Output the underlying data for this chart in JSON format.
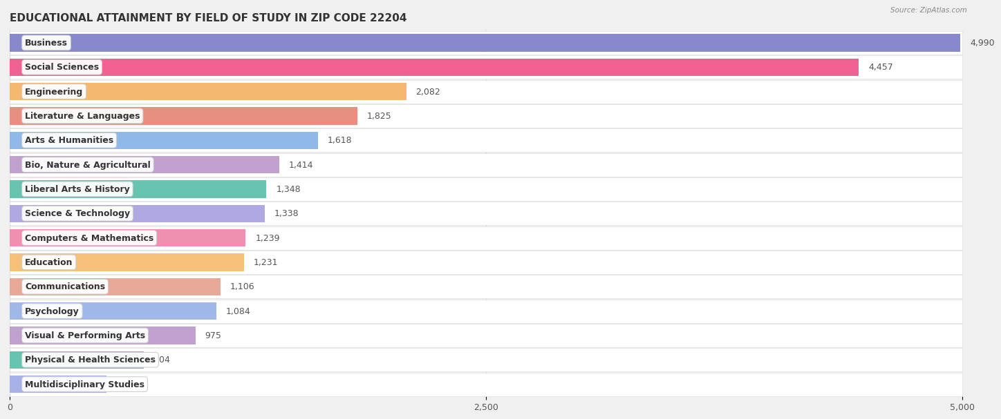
{
  "title": "EDUCATIONAL ATTAINMENT BY FIELD OF STUDY IN ZIP CODE 22204",
  "source": "Source: ZipAtlas.com",
  "categories": [
    "Business",
    "Social Sciences",
    "Engineering",
    "Literature & Languages",
    "Arts & Humanities",
    "Bio, Nature & Agricultural",
    "Liberal Arts & History",
    "Science & Technology",
    "Computers & Mathematics",
    "Education",
    "Communications",
    "Psychology",
    "Visual & Performing Arts",
    "Physical & Health Sciences",
    "Multidisciplinary Studies"
  ],
  "values": [
    4990,
    4457,
    2082,
    1825,
    1618,
    1414,
    1348,
    1338,
    1239,
    1231,
    1106,
    1084,
    975,
    704,
    507
  ],
  "bar_colors": [
    "#8888cc",
    "#f06090",
    "#f5b870",
    "#e89080",
    "#90b8e8",
    "#c0a0cc",
    "#68c4b0",
    "#b0a8e0",
    "#f090b0",
    "#f5c07a",
    "#e8a898",
    "#a0b8e8",
    "#c0a0cc",
    "#68c4b0",
    "#a8b0e8"
  ],
  "xlim": [
    0,
    5000
  ],
  "xticks": [
    0,
    2500,
    5000
  ],
  "background_color": "#f0f0f0",
  "row_bg_color": "#ffffff",
  "title_fontsize": 11,
  "label_fontsize": 9,
  "value_fontsize": 9
}
